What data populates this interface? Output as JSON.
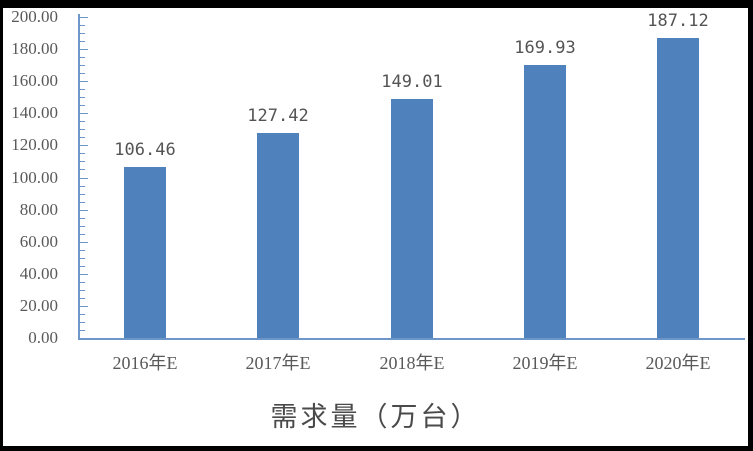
{
  "chart_data": {
    "type": "bar",
    "title": "需求量（万台）",
    "xlabel": "",
    "ylabel": "",
    "categories": [
      "2016年E",
      "2017年E",
      "2018年E",
      "2019年E",
      "2020年E"
    ],
    "values": [
      106.46,
      127.42,
      149.01,
      169.93,
      187.12
    ],
    "value_labels": [
      "106.46",
      "127.42",
      "149.01",
      "169.93",
      "187.12"
    ],
    "ylim": [
      0,
      200
    ],
    "ytick_step": 20,
    "ytick_minor_step": 5,
    "ytick_labels": [
      "0.00",
      "20.00",
      "40.00",
      "60.00",
      "80.00",
      "100.00",
      "120.00",
      "140.00",
      "160.00",
      "180.00",
      "200.00"
    ],
    "grid": false,
    "legend": "none",
    "colors": {
      "bar": "#4f81bd",
      "axis": "#6e96c8",
      "tick": "#6e96c8",
      "text": "#595959",
      "title_text": "#4a4a4a",
      "frame_border": "#000000",
      "background": "#ffffff"
    }
  }
}
